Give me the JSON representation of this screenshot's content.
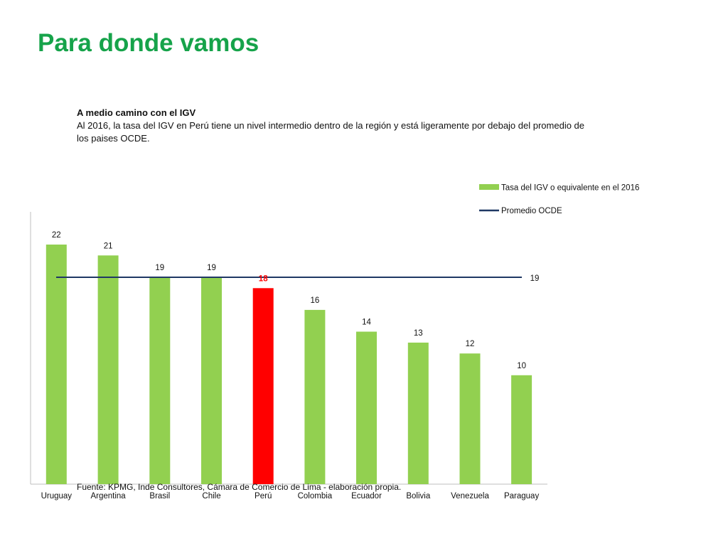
{
  "slide": {
    "title": "Para donde vamos"
  },
  "intro": {
    "heading": "A medio camino con el IGV",
    "text": "Al 2016, la tasa del IGV en Perú tiene un nivel intermedio dentro de la región y está ligeramente por debajo del promedio de los paises OCDE."
  },
  "source": "Fuente: KPMG, Inde Consultores, Cámara de Comercio de Lima - elaboración propia.",
  "colors": {
    "bar": "#92d050",
    "highlight": "#ff0000",
    "average_line": "#1f3864"
  },
  "chart_data": {
    "type": "bar",
    "categories": [
      "Uruguay",
      "Argentina",
      "Brasil",
      "Chile",
      "Perú",
      "Colombia",
      "Ecuador",
      "Bolivia",
      "Venezuela",
      "Paraguay"
    ],
    "series": [
      {
        "name": "Tasa del IGV o equivalente en el 2016",
        "type": "bar",
        "values": [
          22,
          21,
          19,
          19,
          18,
          16,
          14,
          13,
          12,
          10
        ],
        "highlight_category": "Perú"
      },
      {
        "name": "Promedio OCDE",
        "type": "line",
        "value": 19
      }
    ],
    "ylim": [
      0,
      24.5
    ],
    "grid": false,
    "legend": "top-right"
  }
}
